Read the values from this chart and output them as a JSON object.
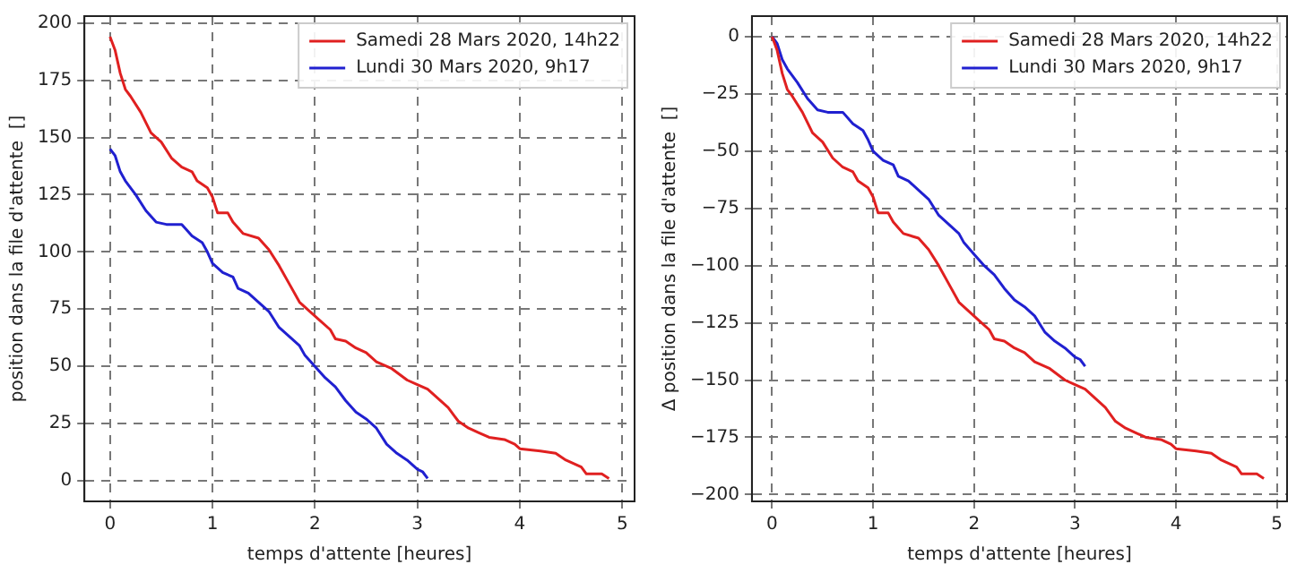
{
  "chart_data": [
    {
      "type": "line",
      "xlabel": "temps d'attente [heures]",
      "ylabel": "position dans la file d'attente  []",
      "xlim": [
        -0.25,
        5.12
      ],
      "ylim": [
        -9,
        203
      ],
      "xticks": [
        0,
        1,
        2,
        3,
        4,
        5
      ],
      "yticks": [
        0,
        25,
        50,
        75,
        100,
        125,
        150,
        175,
        200
      ],
      "grid": true,
      "legend": "top right",
      "series": [
        {
          "name": "Samedi 28 Mars 2020, 14h22",
          "color": "#e02020",
          "x": [
            0,
            0.05,
            0.1,
            0.15,
            0.2,
            0.3,
            0.4,
            0.5,
            0.6,
            0.7,
            0.8,
            0.85,
            0.95,
            1.0,
            1.05,
            1.15,
            1.2,
            1.3,
            1.45,
            1.55,
            1.65,
            1.75,
            1.85,
            1.95,
            2.05,
            2.15,
            2.2,
            2.3,
            2.4,
            2.5,
            2.6,
            2.75,
            2.9,
            3.0,
            3.1,
            3.2,
            3.3,
            3.4,
            3.5,
            3.6,
            3.7,
            3.85,
            3.95,
            4.0,
            4.2,
            4.35,
            4.45,
            4.6,
            4.65,
            4.8,
            4.87
          ],
          "values": [
            194,
            188,
            178,
            171,
            168,
            161,
            152,
            148,
            141,
            137,
            135,
            131,
            128,
            124,
            117,
            117,
            113,
            108,
            106,
            101,
            94,
            86,
            78,
            74,
            70,
            66,
            62,
            61,
            58,
            56,
            52,
            49,
            44,
            42,
            40,
            36,
            32,
            26,
            23,
            21,
            19,
            18,
            16,
            14,
            13,
            12,
            9,
            6,
            3,
            3,
            1
          ]
        },
        {
          "name": "Lundi 30 Mars 2020, 9h17",
          "color": "#2020d0",
          "x": [
            0,
            0.05,
            0.1,
            0.15,
            0.25,
            0.35,
            0.45,
            0.55,
            0.7,
            0.8,
            0.9,
            0.95,
            1.0,
            1.1,
            1.2,
            1.25,
            1.35,
            1.45,
            1.55,
            1.65,
            1.75,
            1.85,
            1.9,
            2.0,
            2.1,
            2.2,
            2.3,
            2.4,
            2.5,
            2.6,
            2.7,
            2.8,
            2.9,
            3.0,
            3.05,
            3.1
          ],
          "values": [
            145,
            142,
            135,
            131,
            125,
            118,
            113,
            112,
            112,
            107,
            104,
            100,
            95,
            91,
            89,
            84,
            82,
            78,
            74,
            67,
            63,
            59,
            55,
            50,
            45,
            41,
            35,
            30,
            27,
            23,
            16,
            12,
            9,
            5,
            4,
            1
          ]
        }
      ]
    },
    {
      "type": "line",
      "xlabel": "temps d'attente [heures]",
      "ylabel": "Δ position dans la file d'attente  []",
      "xlim": [
        -0.2,
        5.1
      ],
      "ylim": [
        -203,
        9
      ],
      "xticks": [
        0,
        1,
        2,
        3,
        4,
        5
      ],
      "yticks": [
        -200,
        -175,
        -150,
        -125,
        -100,
        -75,
        -50,
        -25,
        0
      ],
      "grid": true,
      "legend": "top right",
      "series": [
        {
          "name": "Samedi 28 Mars 2020, 14h22",
          "color": "#e02020",
          "x": [
            0,
            0.05,
            0.1,
            0.15,
            0.2,
            0.3,
            0.4,
            0.5,
            0.6,
            0.7,
            0.8,
            0.85,
            0.95,
            1.0,
            1.05,
            1.15,
            1.2,
            1.3,
            1.45,
            1.55,
            1.65,
            1.75,
            1.85,
            1.95,
            2.05,
            2.15,
            2.2,
            2.3,
            2.4,
            2.5,
            2.6,
            2.75,
            2.9,
            3.0,
            3.1,
            3.2,
            3.3,
            3.4,
            3.5,
            3.6,
            3.7,
            3.85,
            3.95,
            4.0,
            4.2,
            4.35,
            4.45,
            4.6,
            4.65,
            4.8,
            4.87
          ],
          "values": [
            0,
            -6,
            -16,
            -23,
            -26,
            -33,
            -42,
            -46,
            -53,
            -57,
            -59,
            -63,
            -66,
            -70,
            -77,
            -77,
            -81,
            -86,
            -88,
            -93,
            -100,
            -108,
            -116,
            -120,
            -124,
            -128,
            -132,
            -133,
            -136,
            -138,
            -142,
            -145,
            -150,
            -152,
            -154,
            -158,
            -162,
            -168,
            -171,
            -173,
            -175,
            -176,
            -178,
            -180,
            -181,
            -182,
            -185,
            -188,
            -191,
            -191,
            -193
          ]
        },
        {
          "name": "Lundi 30 Mars 2020, 9h17",
          "color": "#2020d0",
          "x": [
            0,
            0.05,
            0.1,
            0.15,
            0.25,
            0.35,
            0.45,
            0.55,
            0.7,
            0.8,
            0.9,
            0.95,
            1.0,
            1.1,
            1.2,
            1.25,
            1.35,
            1.45,
            1.55,
            1.65,
            1.75,
            1.85,
            1.9,
            2.0,
            2.1,
            2.2,
            2.3,
            2.4,
            2.5,
            2.6,
            2.7,
            2.8,
            2.9,
            3.0,
            3.05,
            3.1
          ],
          "values": [
            0,
            -3,
            -10,
            -14,
            -20,
            -27,
            -32,
            -33,
            -33,
            -38,
            -41,
            -45,
            -50,
            -54,
            -56,
            -61,
            -63,
            -67,
            -71,
            -78,
            -82,
            -86,
            -90,
            -95,
            -100,
            -104,
            -110,
            -115,
            -118,
            -122,
            -129,
            -133,
            -136,
            -140,
            -141,
            -144
          ]
        }
      ]
    }
  ]
}
